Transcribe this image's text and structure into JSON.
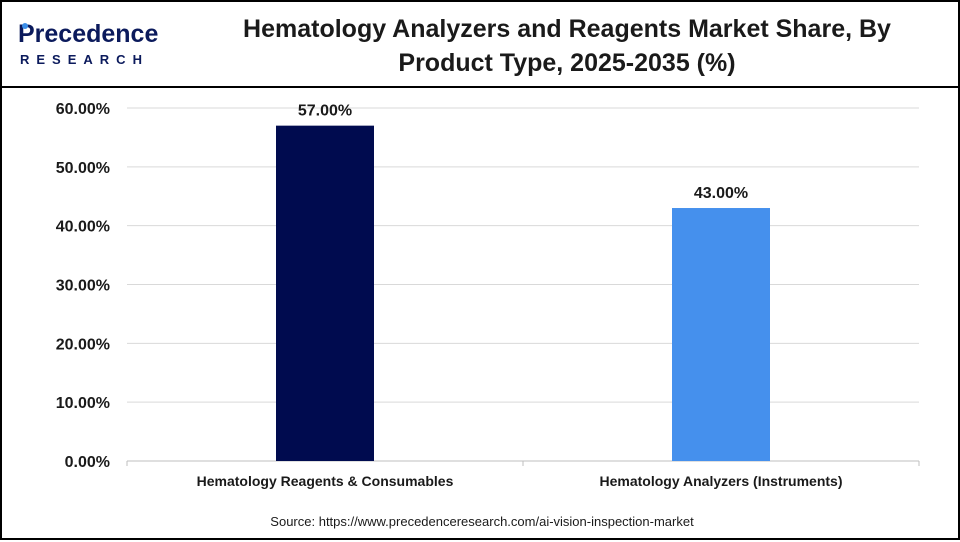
{
  "brand": {
    "logo_line1": "Precedence",
    "logo_line2": "RESEARCH",
    "logo_color": "#0b1a5c",
    "logo_accent": "#3b8ee8"
  },
  "title": "Hematology Analyzers and Reagents Market Share, By Product Type, 2025-2035 (%)",
  "source": "Source: https://www.precedenceresearch.com/ai-vision-inspection-market",
  "chart_data": {
    "type": "bar",
    "title": "Hematology Analyzers and Reagents Market Share, By Product Type, 2025-2035 (%)",
    "categories": [
      "Hematology Reagents & Consumables",
      "Hematology Analyzers (Instruments)"
    ],
    "values": [
      57.0,
      43.0
    ],
    "data_labels": [
      "57.00%",
      "43.00%"
    ],
    "colors": [
      "#000b4f",
      "#4590ed"
    ],
    "ylim": [
      0,
      60
    ],
    "yticks": [
      0,
      10,
      20,
      30,
      40,
      50,
      60
    ],
    "ytick_labels": [
      "0.00%",
      "10.00%",
      "20.00%",
      "30.00%",
      "40.00%",
      "50.00%",
      "60.00%"
    ],
    "grid": true,
    "legend": "none",
    "xlabel": "",
    "ylabel": ""
  }
}
